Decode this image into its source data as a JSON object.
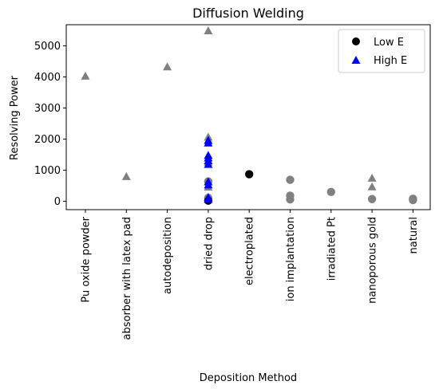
{
  "chart_data": {
    "type": "scatter",
    "title": "Diffusion Welding",
    "xlabel": "Deposition Method",
    "ylabel": "Resolving Power",
    "categories": [
      "Pu oxide powder",
      "absorber with latex pad",
      "autodeposition",
      "dried drop",
      "electroplated",
      "ion implantation",
      "irradiated Pt",
      "nanoporous gold",
      "natural"
    ],
    "yticks": [
      0,
      1000,
      2000,
      3000,
      4000,
      5000
    ],
    "ylim": [
      -270,
      5680
    ],
    "grid": false,
    "legend": {
      "placement": "top-right",
      "entries": [
        {
          "label": "Low E",
          "marker": "circle",
          "color": "#000000"
        },
        {
          "label": "High E",
          "marker": "triangle",
          "color": "#0000ff"
        }
      ]
    },
    "series": [
      {
        "marker": "triangle",
        "color": "#808080",
        "points": [
          {
            "x": "Pu oxide powder",
            "y": 4020
          },
          {
            "x": "absorber with latex pad",
            "y": 790
          },
          {
            "x": "autodeposition",
            "y": 4320
          },
          {
            "x": "dried drop",
            "y": 5480
          },
          {
            "x": "dried drop",
            "y": 2060
          },
          {
            "x": "dried drop",
            "y": 1250
          },
          {
            "x": "dried drop",
            "y": 450
          },
          {
            "x": "nanoporous gold",
            "y": 740
          },
          {
            "x": "nanoporous gold",
            "y": 460
          }
        ]
      },
      {
        "marker": "circle",
        "color": "#808080",
        "points": [
          {
            "x": "dried drop",
            "y": 640
          },
          {
            "x": "dried drop",
            "y": 110
          },
          {
            "x": "ion implantation",
            "y": 690
          },
          {
            "x": "ion implantation",
            "y": 180
          },
          {
            "x": "ion implantation",
            "y": 60
          },
          {
            "x": "irradiated Pt",
            "y": 300
          },
          {
            "x": "nanoporous gold",
            "y": 70
          },
          {
            "x": "natural",
            "y": 80
          },
          {
            "x": "natural",
            "y": 40
          }
        ]
      },
      {
        "name": "Low E",
        "marker": "circle",
        "color": "#000000",
        "points": [
          {
            "x": "dried drop",
            "y": 20
          },
          {
            "x": "electroplated",
            "y": 870
          }
        ]
      },
      {
        "name": "High E",
        "marker": "triangle",
        "color": "#0000ff",
        "points": [
          {
            "x": "dried drop",
            "y": 1950
          },
          {
            "x": "dried drop",
            "y": 1870
          },
          {
            "x": "dried drop",
            "y": 1470
          },
          {
            "x": "dried drop",
            "y": 1390
          },
          {
            "x": "dried drop",
            "y": 1300
          },
          {
            "x": "dried drop",
            "y": 1180
          },
          {
            "x": "dried drop",
            "y": 620
          },
          {
            "x": "dried drop",
            "y": 520
          },
          {
            "x": "dried drop",
            "y": 120
          },
          {
            "x": "dried drop",
            "y": 60
          }
        ]
      }
    ]
  }
}
